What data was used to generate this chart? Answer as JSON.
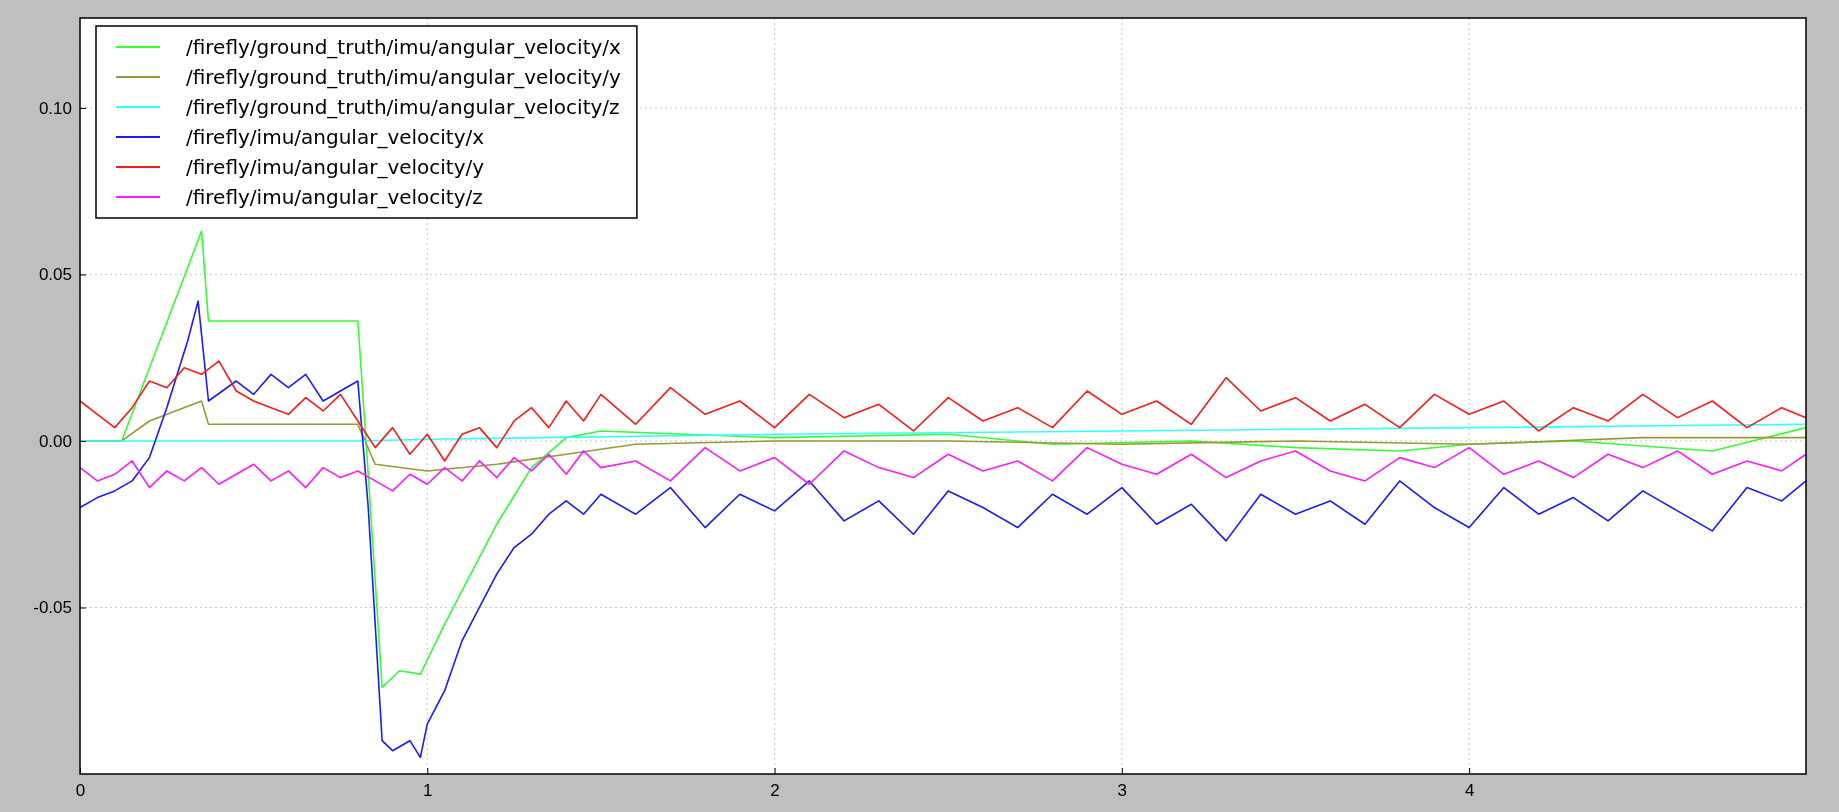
{
  "chart_data": {
    "type": "line",
    "xlim": [
      0,
      4.97
    ],
    "ylim": [
      -0.1,
      0.127
    ],
    "xticks": [
      0,
      1,
      2,
      3,
      4
    ],
    "yticks": [
      {
        "value": -0.05,
        "label": "-0.05"
      },
      {
        "value": 0,
        "label": "0.00"
      },
      {
        "value": 0.05,
        "label": "0.05"
      },
      {
        "value": 0.1,
        "label": "0.10"
      }
    ],
    "grid": true,
    "legend": "top left",
    "line_style": "solid",
    "marker": "none",
    "series": [
      {
        "name": "/firefly/ground_truth/imu/angular_velocity/x",
        "color": "#33ff33",
        "x": [
          0,
          0.12,
          0.35,
          0.37,
          0.8,
          0.83,
          0.87,
          0.92,
          0.98,
          1.05,
          1.2,
          1.3,
          1.4,
          1.5,
          2,
          2.5,
          2.8,
          3.2,
          3.5,
          3.8,
          4,
          4.3,
          4.7,
          4.97
        ],
        "values": [
          0,
          0,
          0.063,
          0.036,
          0.036,
          -0.01,
          -0.074,
          -0.069,
          -0.07,
          -0.055,
          -0.025,
          -0.008,
          0.001,
          0.003,
          0.001,
          0.002,
          -0.001,
          0,
          -0.002,
          -0.003,
          -0.001,
          0,
          -0.003,
          0.004
        ]
      },
      {
        "name": "/firefly/ground_truth/imu/angular_velocity/y",
        "color": "#999933",
        "x": [
          0,
          0.12,
          0.2,
          0.35,
          0.37,
          0.8,
          0.85,
          1,
          1.2,
          1.4,
          1.6,
          2,
          2.5,
          3,
          3.5,
          4,
          4.5,
          4.97
        ],
        "values": [
          0,
          0,
          0.006,
          0.012,
          0.005,
          0.005,
          -0.007,
          -0.009,
          -0.007,
          -0.004,
          -0.001,
          0,
          0,
          -0.001,
          0,
          -0.001,
          0.001,
          0.001
        ]
      },
      {
        "name": "/firefly/ground_truth/imu/angular_velocity/z",
        "color": "#33ffff",
        "x": [
          0,
          0.8,
          1,
          2,
          3,
          4,
          4.97
        ],
        "values": [
          0,
          0,
          0.0005,
          0.002,
          0.003,
          0.004,
          0.005
        ]
      },
      {
        "name": "/firefly/imu/angular_velocity/x",
        "color": "#1a1aff",
        "x": [
          0,
          0.05,
          0.1,
          0.15,
          0.2,
          0.25,
          0.28,
          0.31,
          0.34,
          0.37,
          0.45,
          0.5,
          0.55,
          0.6,
          0.65,
          0.7,
          0.8,
          0.83,
          0.87,
          0.9,
          0.95,
          0.98,
          1,
          1.05,
          1.1,
          1.15,
          1.2,
          1.25,
          1.3,
          1.35,
          1.4,
          1.45,
          1.5,
          1.6,
          1.7,
          1.8,
          1.9,
          2,
          2.1,
          2.2,
          2.3,
          2.4,
          2.5,
          2.6,
          2.7,
          2.8,
          2.9,
          3,
          3.1,
          3.2,
          3.3,
          3.4,
          3.5,
          3.6,
          3.7,
          3.8,
          3.9,
          4,
          4.1,
          4.2,
          4.3,
          4.4,
          4.5,
          4.6,
          4.7,
          4.8,
          4.9,
          4.97
        ],
        "values": [
          -0.02,
          -0.017,
          -0.015,
          -0.012,
          -0.005,
          0.01,
          0.02,
          0.03,
          0.042,
          0.012,
          0.018,
          0.014,
          0.02,
          0.016,
          0.02,
          0.012,
          0.018,
          -0.02,
          -0.09,
          -0.093,
          -0.09,
          -0.095,
          -0.085,
          -0.075,
          -0.06,
          -0.05,
          -0.04,
          -0.032,
          -0.028,
          -0.022,
          -0.018,
          -0.022,
          -0.016,
          -0.022,
          -0.014,
          -0.026,
          -0.016,
          -0.021,
          -0.012,
          -0.024,
          -0.018,
          -0.028,
          -0.015,
          -0.02,
          -0.026,
          -0.016,
          -0.022,
          -0.014,
          -0.025,
          -0.019,
          -0.03,
          -0.016,
          -0.022,
          -0.018,
          -0.025,
          -0.012,
          -0.02,
          -0.026,
          -0.014,
          -0.022,
          -0.017,
          -0.024,
          -0.015,
          -0.021,
          -0.027,
          -0.014,
          -0.018,
          -0.012
        ]
      },
      {
        "name": "/firefly/imu/angular_velocity/y",
        "color": "#ff1a1a",
        "x": [
          0,
          0.05,
          0.1,
          0.15,
          0.2,
          0.25,
          0.3,
          0.35,
          0.4,
          0.45,
          0.5,
          0.55,
          0.6,
          0.65,
          0.7,
          0.75,
          0.8,
          0.85,
          0.9,
          0.95,
          1,
          1.05,
          1.1,
          1.15,
          1.2,
          1.25,
          1.3,
          1.35,
          1.4,
          1.45,
          1.5,
          1.6,
          1.7,
          1.8,
          1.9,
          2,
          2.1,
          2.2,
          2.3,
          2.4,
          2.5,
          2.6,
          2.7,
          2.8,
          2.9,
          3,
          3.1,
          3.2,
          3.3,
          3.4,
          3.5,
          3.6,
          3.7,
          3.8,
          3.9,
          4,
          4.1,
          4.2,
          4.3,
          4.4,
          4.5,
          4.6,
          4.7,
          4.8,
          4.9,
          4.97
        ],
        "values": [
          0.012,
          0.008,
          0.004,
          0.01,
          0.018,
          0.016,
          0.022,
          0.02,
          0.024,
          0.015,
          0.012,
          0.01,
          0.008,
          0.013,
          0.009,
          0.014,
          0.006,
          -0.002,
          0.004,
          -0.004,
          0.002,
          -0.006,
          0.002,
          0.004,
          -0.002,
          0.006,
          0.01,
          0.004,
          0.012,
          0.006,
          0.014,
          0.005,
          0.016,
          0.008,
          0.012,
          0.004,
          0.014,
          0.007,
          0.011,
          0.003,
          0.013,
          0.006,
          0.01,
          0.004,
          0.015,
          0.008,
          0.012,
          0.005,
          0.019,
          0.009,
          0.013,
          0.006,
          0.011,
          0.004,
          0.014,
          0.008,
          0.012,
          0.003,
          0.01,
          0.006,
          0.014,
          0.007,
          0.012,
          0.004,
          0.01,
          0.007
        ]
      },
      {
        "name": "/firefly/imu/angular_velocity/z",
        "color": "#ff1aff",
        "x": [
          0,
          0.05,
          0.1,
          0.15,
          0.2,
          0.25,
          0.3,
          0.35,
          0.4,
          0.45,
          0.5,
          0.55,
          0.6,
          0.65,
          0.7,
          0.75,
          0.8,
          0.85,
          0.9,
          0.95,
          1,
          1.05,
          1.1,
          1.15,
          1.2,
          1.25,
          1.3,
          1.35,
          1.4,
          1.45,
          1.5,
          1.6,
          1.7,
          1.8,
          1.9,
          2,
          2.1,
          2.2,
          2.3,
          2.4,
          2.5,
          2.6,
          2.7,
          2.8,
          2.9,
          3,
          3.1,
          3.2,
          3.3,
          3.4,
          3.5,
          3.6,
          3.7,
          3.8,
          3.9,
          4,
          4.1,
          4.2,
          4.3,
          4.4,
          4.5,
          4.6,
          4.7,
          4.8,
          4.9,
          4.97
        ],
        "values": [
          -0.008,
          -0.012,
          -0.01,
          -0.006,
          -0.014,
          -0.009,
          -0.012,
          -0.008,
          -0.013,
          -0.01,
          -0.007,
          -0.012,
          -0.009,
          -0.014,
          -0.008,
          -0.011,
          -0.009,
          -0.012,
          -0.015,
          -0.01,
          -0.013,
          -0.008,
          -0.012,
          -0.006,
          -0.011,
          -0.005,
          -0.009,
          -0.004,
          -0.01,
          -0.003,
          -0.008,
          -0.006,
          -0.012,
          -0.002,
          -0.009,
          -0.005,
          -0.013,
          -0.003,
          -0.008,
          -0.011,
          -0.004,
          -0.009,
          -0.006,
          -0.012,
          -0.002,
          -0.007,
          -0.01,
          -0.004,
          -0.011,
          -0.006,
          -0.003,
          -0.009,
          -0.012,
          -0.005,
          -0.008,
          -0.002,
          -0.01,
          -0.006,
          -0.011,
          -0.004,
          -0.008,
          -0.003,
          -0.01,
          -0.006,
          -0.009,
          -0.004
        ]
      }
    ]
  }
}
